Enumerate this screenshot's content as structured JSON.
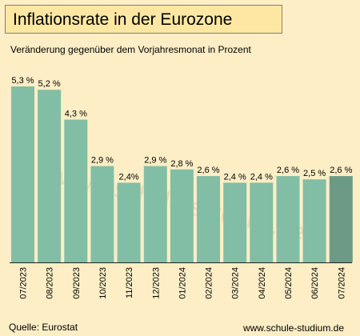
{
  "title": "Inflationsrate in der Eurozone",
  "subtitle": "Veränderung gegenüber dem Vorjahresmonat in Prozent",
  "source": "Quelle: Eurostat",
  "website": "www.schule-studium.de",
  "watermark": "www.schule-studium.de",
  "colors": {
    "background": "#fdeec6",
    "title_box": "#fde7a3",
    "bar": "#82bea5",
    "bar_highlight": "#6d9a86",
    "axis": "#222222"
  },
  "chart_data": {
    "type": "bar",
    "categories": [
      "07/2023",
      "08/2023",
      "09/2023",
      "10/2023",
      "11/2023",
      "12/2023",
      "01/2024",
      "02/2024",
      "03/2024",
      "04/2024",
      "05/2024",
      "06/2024",
      "07/2024"
    ],
    "values": [
      5.3,
      5.2,
      4.3,
      2.9,
      2.4,
      2.9,
      2.8,
      2.6,
      2.4,
      2.4,
      2.6,
      2.5,
      2.6
    ],
    "data_labels": [
      "5,3 %",
      "5,2 %",
      "4,3 %",
      "2,9 %",
      "2,4%",
      "2,9 %",
      "2,8 %",
      "2,6 %",
      "2,4 %",
      "2,4 %",
      "2,6 %",
      "2,5 %",
      "2,6 %"
    ],
    "highlighted_category": "07/2024",
    "ylim": [
      0,
      5.3
    ],
    "grid": false,
    "legend": "none"
  }
}
